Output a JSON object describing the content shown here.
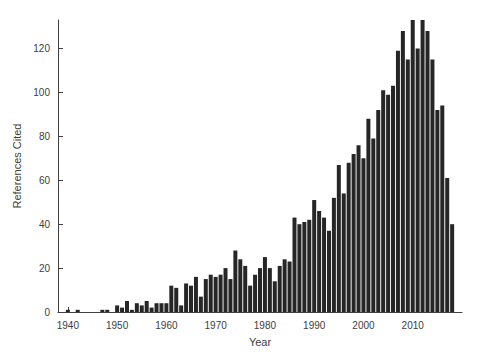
{
  "chart_data": {
    "type": "bar",
    "x_label": "Year",
    "y_label": "References Cited",
    "x": [
      1940,
      1941,
      1942,
      1943,
      1944,
      1945,
      1946,
      1947,
      1948,
      1949,
      1950,
      1951,
      1952,
      1953,
      1954,
      1955,
      1956,
      1957,
      1958,
      1959,
      1960,
      1961,
      1962,
      1963,
      1964,
      1965,
      1966,
      1967,
      1968,
      1969,
      1970,
      1971,
      1972,
      1973,
      1974,
      1975,
      1976,
      1977,
      1978,
      1979,
      1980,
      1981,
      1982,
      1983,
      1984,
      1985,
      1986,
      1987,
      1988,
      1989,
      1990,
      1991,
      1992,
      1993,
      1994,
      1995,
      1996,
      1997,
      1998,
      1999,
      2000,
      2001,
      2002,
      2003,
      2004,
      2005,
      2006,
      2007,
      2008,
      2009,
      2010,
      2011,
      2012,
      2013,
      2014,
      2015,
      2016,
      2017,
      2018
    ],
    "values": [
      1,
      0,
      1,
      0,
      0,
      0,
      0,
      1,
      1,
      0,
      3,
      2,
      5,
      1,
      4,
      3,
      5,
      2,
      4,
      4,
      4,
      12,
      11,
      3,
      13,
      12,
      16,
      7,
      15,
      17,
      16,
      17,
      20,
      15,
      28,
      24,
      21,
      12,
      17,
      20,
      25,
      20,
      14,
      21,
      24,
      23,
      43,
      40,
      41,
      42,
      51,
      46,
      43,
      37,
      52,
      67,
      54,
      68,
      72,
      76,
      70,
      88,
      79,
      92,
      101,
      99,
      103,
      119,
      128,
      115,
      133,
      120,
      133,
      128,
      115,
      92,
      94,
      61,
      40
    ],
    "color": "#262626",
    "xlim": [
      1938,
      2020
    ],
    "xticks": [
      1940,
      1950,
      1960,
      1970,
      1980,
      1990,
      2000,
      2010
    ],
    "ylim": [
      0,
      133
    ],
    "yticks": [
      0,
      20,
      40,
      60,
      80,
      100,
      120
    ],
    "grid": false
  }
}
